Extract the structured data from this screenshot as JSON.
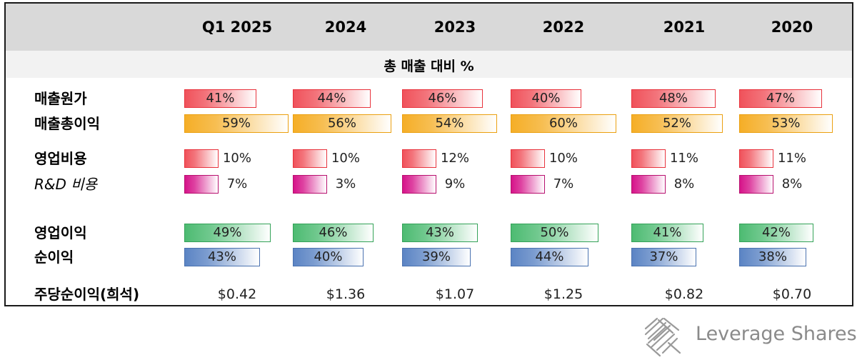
{
  "chart_data": {
    "type": "table",
    "title": "",
    "subtitle": "총 매출 대비 %",
    "columns": [
      "Q1 2025",
      "2024",
      "2023",
      "2022",
      "2021",
      "2020"
    ],
    "rows": [
      {
        "label": "매출원가",
        "color": "#f0525b",
        "border": "#e8323c",
        "values": [
          41,
          44,
          46,
          40,
          48,
          47
        ],
        "display": [
          "41%",
          "44%",
          "46%",
          "40%",
          "48%",
          "47%"
        ]
      },
      {
        "label": "매출총이익",
        "color": "#f5ae27",
        "border": "#eba010",
        "values": [
          59,
          56,
          54,
          60,
          52,
          53
        ],
        "display": [
          "59%",
          "56%",
          "54%",
          "60%",
          "52%",
          "53%"
        ]
      },
      {
        "label": "영업비용",
        "color": "#f0525b",
        "border": "#e8323c",
        "values": [
          10,
          10,
          12,
          10,
          11,
          11
        ],
        "display": [
          "10%",
          "10%",
          "12%",
          "10%",
          "11%",
          "11%"
        ]
      },
      {
        "label": "R&D 비용",
        "italic": true,
        "color": "#d6148a",
        "border": "#b8106f",
        "values": [
          7,
          3,
          9,
          7,
          8,
          8
        ],
        "display": [
          "7%",
          "3%",
          "9%",
          "7%",
          "8%",
          "8%"
        ]
      },
      {
        "label": "영업이익",
        "color": "#4dbb72",
        "border": "#34a258",
        "values": [
          49,
          46,
          43,
          50,
          41,
          42
        ],
        "display": [
          "49%",
          "46%",
          "43%",
          "50%",
          "41%",
          "42%"
        ]
      },
      {
        "label": "순이익",
        "color": "#5b84c4",
        "border": "#4a72b0",
        "values": [
          43,
          40,
          39,
          44,
          37,
          38
        ],
        "display": [
          "43%",
          "40%",
          "39%",
          "44%",
          "37%",
          "38%"
        ]
      }
    ],
    "eps": {
      "label": "주당순이익(희석)",
      "values": [
        "$0.42",
        "$1.36",
        "$1.07",
        "$1.25",
        "$0.82",
        "$0.70"
      ]
    }
  },
  "brand": {
    "name": "Leverage Shares"
  }
}
